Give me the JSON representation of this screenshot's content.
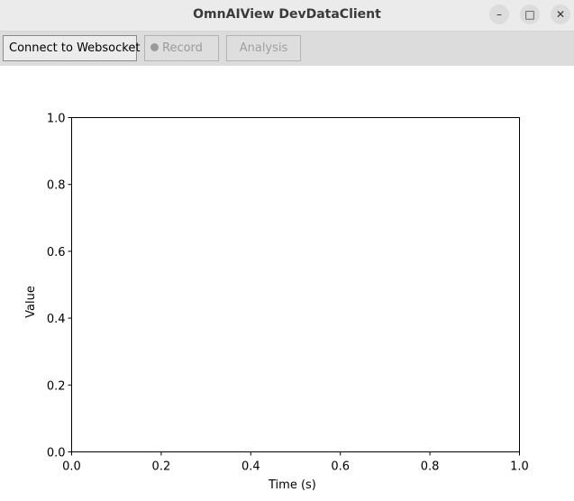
{
  "window": {
    "title": "OmnAIView DevDataClient",
    "controls": [
      {
        "name": "minimize",
        "glyph": "–"
      },
      {
        "name": "maximize",
        "glyph": "□"
      },
      {
        "name": "close",
        "glyph": "✕"
      }
    ]
  },
  "toolbar": {
    "connect_label": "Connect to Websocket",
    "record_label": "Record",
    "analysis_label": "Analysis"
  },
  "chart_data": {
    "type": "line",
    "title": "",
    "xlabel": "Time (s)",
    "ylabel": "Value",
    "xlim": [
      0.0,
      1.0
    ],
    "ylim": [
      0.0,
      1.0
    ],
    "xticks": [
      "0.0",
      "0.2",
      "0.4",
      "0.6",
      "0.8",
      "1.0"
    ],
    "yticks": [
      "0.0",
      "0.2",
      "0.4",
      "0.6",
      "0.8",
      "1.0"
    ],
    "series": [],
    "grid": false
  }
}
